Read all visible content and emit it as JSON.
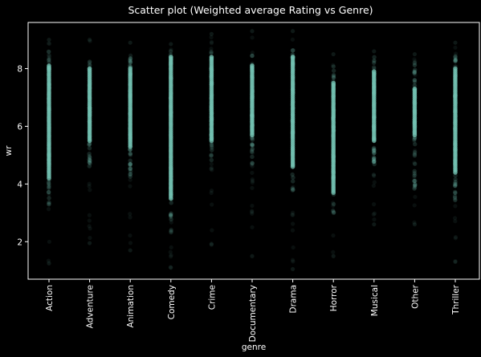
{
  "chart_data": {
    "type": "scatter",
    "title": "Scatter plot (Weighted average Rating vs Genre)",
    "xlabel": "genre",
    "ylabel": "wr",
    "categories": [
      "Action",
      "Adventure",
      "Animation",
      "Comedy",
      "Crime",
      "Documentary",
      "Drama",
      "Horror",
      "Musical",
      "Other",
      "Thriller"
    ],
    "ylim": [
      0.7,
      9.6
    ],
    "yticks": [
      2,
      4,
      6,
      8
    ],
    "grid": false,
    "marker_color": "#76c5b5",
    "background": "#000000",
    "series": [
      {
        "ranges": [
          {
            "category": "Action",
            "min": 1.25,
            "max": 9.0,
            "core_min": 3.2,
            "core_max": 8.6,
            "dense_min": 4.2,
            "dense_max": 8.1
          },
          {
            "category": "Adventure",
            "min": 1.95,
            "max": 9.0,
            "core_min": 4.6,
            "core_max": 8.4,
            "dense_min": 5.5,
            "dense_max": 8.0
          },
          {
            "category": "Animation",
            "min": 1.7,
            "max": 8.9,
            "core_min": 4.2,
            "core_max": 8.4,
            "dense_min": 5.3,
            "dense_max": 8.0
          },
          {
            "category": "Comedy",
            "min": 1.1,
            "max": 8.85,
            "core_min": 2.3,
            "core_max": 8.7,
            "dense_min": 3.5,
            "dense_max": 8.4
          },
          {
            "category": "Crime",
            "min": 1.9,
            "max": 9.2,
            "core_min": 4.8,
            "core_max": 8.7,
            "dense_min": 5.5,
            "dense_max": 8.4
          },
          {
            "category": "Documentary",
            "min": 1.5,
            "max": 9.3,
            "core_min": 4.7,
            "core_max": 8.5,
            "dense_min": 5.7,
            "dense_max": 8.1
          },
          {
            "category": "Drama",
            "min": 1.05,
            "max": 9.3,
            "core_min": 3.7,
            "core_max": 8.7,
            "dense_min": 4.6,
            "dense_max": 8.4
          },
          {
            "category": "Horror",
            "min": 1.5,
            "max": 8.5,
            "core_min": 2.9,
            "core_max": 8.2,
            "dense_min": 3.7,
            "dense_max": 7.5
          },
          {
            "category": "Musical",
            "min": 2.6,
            "max": 8.6,
            "core_min": 4.6,
            "core_max": 8.4,
            "dense_min": 5.5,
            "dense_max": 7.9
          },
          {
            "category": "Other",
            "min": 2.6,
            "max": 8.5,
            "core_min": 3.8,
            "core_max": 8.2,
            "dense_min": 5.7,
            "dense_max": 7.3
          },
          {
            "category": "Thriller",
            "min": 1.3,
            "max": 8.9,
            "core_min": 3.4,
            "core_max": 8.6,
            "dense_min": 4.4,
            "dense_max": 8.0
          }
        ]
      }
    ]
  }
}
